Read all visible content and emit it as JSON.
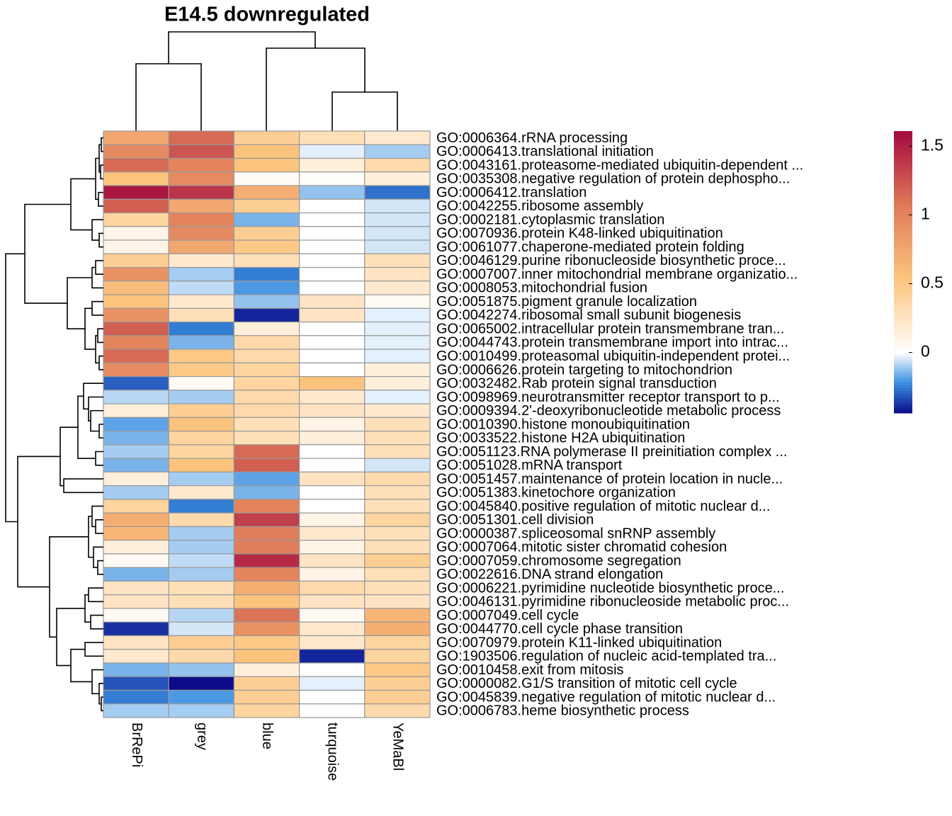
{
  "chart_data": {
    "type": "heatmap",
    "title": "E14.5 downregulated",
    "columns": [
      "BrRePi",
      "grey",
      "blue",
      "turquoise",
      "YeMaBl"
    ],
    "rows": [
      "GO:0006364.rRNA processing",
      "GO:0006413.translational initiation",
      "GO:0043161.proteasome-mediated ubiquitin-dependent ...",
      "GO:0035308.negative regulation of protein dephospho...",
      "GO:0006412.translation",
      "GO:0042255.ribosome assembly",
      "GO:0002181.cytoplasmic translation",
      "GO:0070936.protein K48-linked ubiquitination",
      "GO:0061077.chaperone-mediated protein folding",
      "GO:0046129.purine ribonucleoside biosynthetic proce...",
      "GO:0007007.inner mitochondrial membrane organizatio...",
      "GO:0008053.mitochondrial fusion",
      "GO:0051875.pigment granule localization",
      "GO:0042274.ribosomal small subunit biogenesis",
      "GO:0065002.intracellular protein transmembrane tran...",
      "GO:0044743.protein transmembrane import into intrac...",
      "GO:0010499.proteasomal ubiquitin-independent protei...",
      "GO:0006626.protein targeting to mitochondrion",
      "GO:0032482.Rab protein signal transduction",
      "GO:0098969.neurotransmitter receptor transport to p...",
      "GO:0009394.2'-deoxyribonucleotide metabolic process",
      "GO:0010390.histone monoubiquitination",
      "GO:0033522.histone H2A ubiquitination",
      "GO:0051123.RNA polymerase II preinitiation complex ...",
      "GO:0051028.mRNA transport",
      "GO:0051457.maintenance of protein location in nucle...",
      "GO:0051383.kinetochore organization",
      "GO:0045840.positive regulation of mitotic nuclear d...",
      "GO:0051301.cell division",
      "GO:0000387.spliceosomal snRNP assembly",
      "GO:0007064.mitotic sister chromatid cohesion",
      "GO:0007059.chromosome segregation",
      "GO:0022616.DNA strand elongation",
      "GO:0006221.pyrimidine nucleotide biosynthetic proce...",
      "GO:0046131.pyrimidine ribonucleoside metabolic proc...",
      "GO:0007049.cell cycle",
      "GO:0044770.cell cycle phase transition",
      "GO:0070979.protein K11-linked ubiquitination",
      "GO:1903506.regulation of nucleic acid-templated tra...",
      "GO:0010458.exit from mitosis",
      "GO:0000082.G1/S transition of mitotic cell cycle",
      "GO:0045839.negative regulation of mitotic nuclear d...",
      "GO:0006783.heme biosynthetic process"
    ],
    "values": [
      [
        0.75,
        1.15,
        0.45,
        0.3,
        0.2
      ],
      [
        0.95,
        1.25,
        0.55,
        -0.03,
        -0.1
      ],
      [
        1.15,
        1.0,
        0.55,
        0.15,
        0.35
      ],
      [
        0.55,
        0.95,
        0.05,
        0.02,
        0.15
      ],
      [
        1.55,
        1.4,
        0.7,
        -0.12,
        -0.27
      ],
      [
        1.2,
        0.75,
        0.45,
        0.0,
        -0.05
      ],
      [
        0.4,
        1.0,
        -0.15,
        0.0,
        -0.05
      ],
      [
        0.1,
        0.95,
        0.45,
        0.0,
        -0.05
      ],
      [
        0.1,
        0.75,
        0.5,
        0.0,
        -0.05
      ],
      [
        0.45,
        0.2,
        0.3,
        0.0,
        0.3
      ],
      [
        0.9,
        -0.1,
        -0.25,
        0.0,
        0.25
      ],
      [
        0.6,
        -0.07,
        -0.2,
        0.0,
        0.2
      ],
      [
        0.55,
        0.2,
        -0.12,
        0.25,
        0.05
      ],
      [
        0.9,
        0.3,
        -0.4,
        0.25,
        -0.03
      ],
      [
        1.2,
        -0.25,
        0.15,
        0.0,
        -0.03
      ],
      [
        1.0,
        -0.15,
        0.35,
        0.0,
        -0.03
      ],
      [
        1.15,
        0.5,
        0.35,
        0.0,
        -0.03
      ],
      [
        0.95,
        0.5,
        0.4,
        0.0,
        0.15
      ],
      [
        -0.3,
        0.05,
        0.4,
        0.55,
        0.15
      ],
      [
        -0.08,
        -0.1,
        0.35,
        0.2,
        -0.03
      ],
      [
        0.15,
        0.45,
        0.35,
        0.25,
        0.2
      ],
      [
        -0.18,
        0.55,
        0.3,
        0.1,
        0.3
      ],
      [
        -0.15,
        0.4,
        0.3,
        0.15,
        0.3
      ],
      [
        -0.1,
        0.4,
        1.15,
        0.0,
        0.3
      ],
      [
        -0.15,
        0.55,
        1.2,
        0.0,
        -0.05
      ],
      [
        0.15,
        -0.1,
        -0.18,
        0.25,
        0.35
      ],
      [
        -0.1,
        0.2,
        -0.15,
        0.0,
        0.3
      ],
      [
        0.4,
        -0.25,
        1.0,
        0.0,
        0.3
      ],
      [
        0.7,
        0.35,
        1.35,
        0.1,
        0.4
      ],
      [
        0.65,
        -0.1,
        1.05,
        0.2,
        0.3
      ],
      [
        0.15,
        -0.1,
        1.05,
        0.1,
        0.3
      ],
      [
        0.05,
        -0.07,
        1.45,
        0.25,
        0.45
      ],
      [
        -0.15,
        -0.1,
        1.0,
        0.1,
        0.3
      ],
      [
        0.25,
        0.3,
        0.7,
        0.35,
        0.3
      ],
      [
        0.25,
        0.3,
        0.55,
        0.25,
        0.25
      ],
      [
        0.05,
        -0.08,
        1.1,
        0.05,
        0.65
      ],
      [
        -0.38,
        -0.05,
        0.9,
        0.2,
        0.7
      ],
      [
        0.25,
        0.45,
        0.5,
        0.2,
        0.4
      ],
      [
        0.2,
        0.35,
        0.55,
        -0.4,
        0.4
      ],
      [
        -0.15,
        -0.12,
        0.15,
        0.0,
        0.5
      ],
      [
        -0.32,
        -0.44,
        0.45,
        -0.03,
        0.45
      ],
      [
        -0.25,
        -0.2,
        0.45,
        0.0,
        0.45
      ],
      [
        -0.1,
        -0.1,
        0.4,
        0.0,
        0.35
      ]
    ],
    "colors": [
      "#0c0c8a",
      "#3a8fe0",
      "#ffffff",
      "#fdc57e",
      "#df7a58",
      "#a3093f"
    ],
    "clim": [
      -0.44,
      1.61
    ],
    "cticks": [
      0,
      0.5,
      1,
      1.5
    ]
  }
}
